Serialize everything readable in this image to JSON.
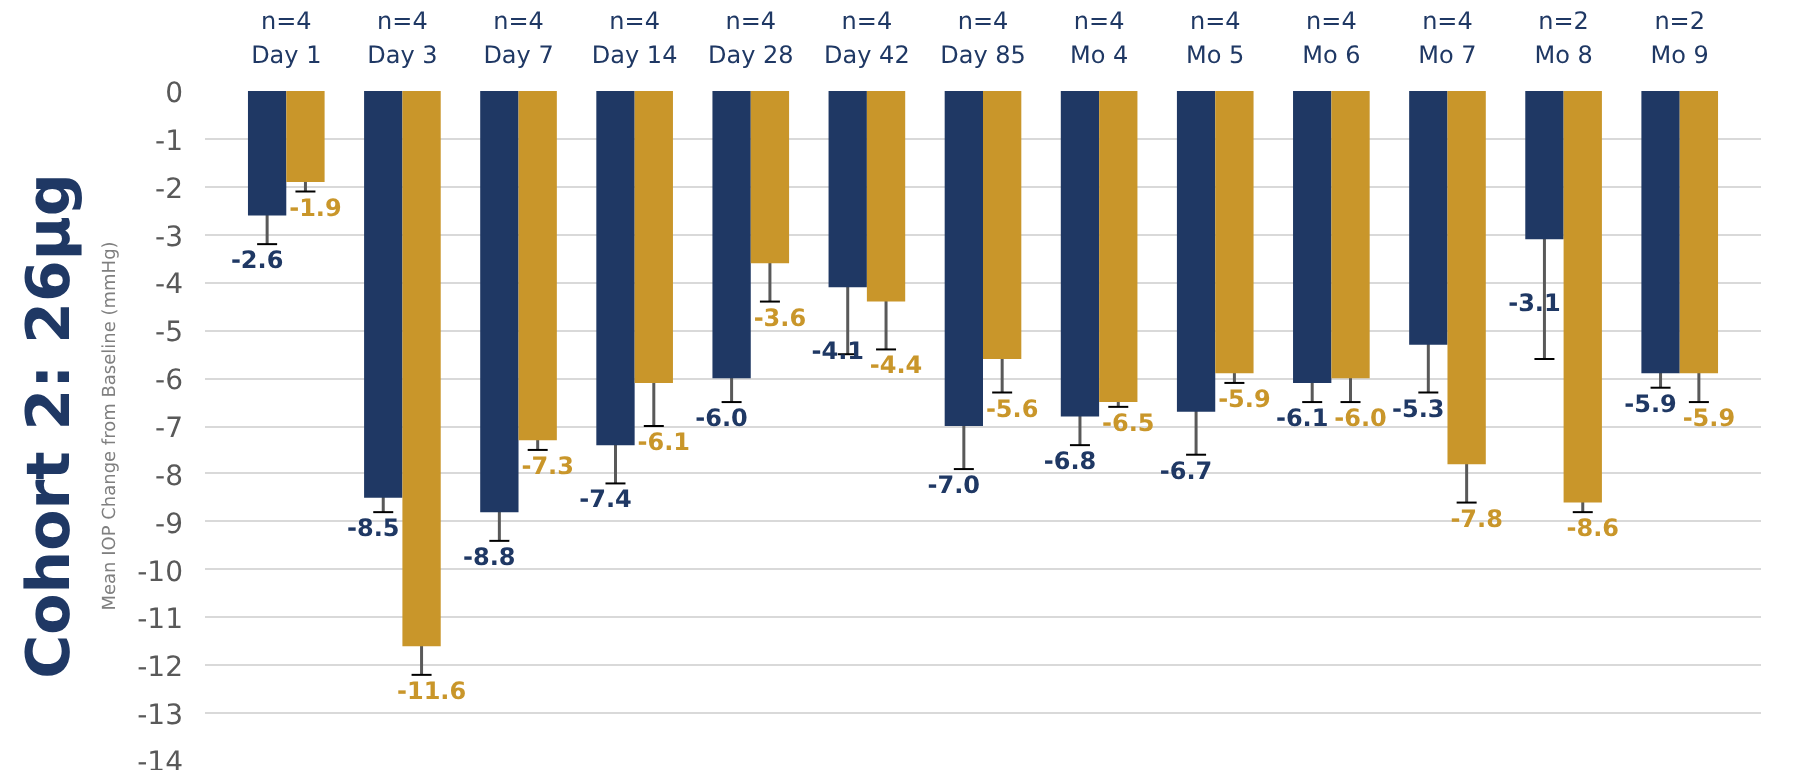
{
  "chart_data": {
    "type": "bar",
    "title": "Cohort 2: 26µg",
    "ylabel": "Mean IOP Change from Baseline (mmHg)",
    "categories": [
      "n=4\nDay 1",
      "n=4\nDay 3",
      "n=4\nDay 7",
      "n=4\nDay 14",
      "n=4\nDay 28",
      "n=4\nDay 42",
      "n=4\nDay 85",
      "n=4\nMo 4",
      "n=4\nMo 5",
      "n=4\nMo 6",
      "n=4\nMo 7",
      "n=2\nMo 8",
      "n=2\nMo 9"
    ],
    "series": [
      {
        "color": "#1f3864",
        "values": [
          -2.6,
          -8.5,
          -8.8,
          -7.4,
          -6.0,
          -4.1,
          -7.0,
          -6.8,
          -6.7,
          -6.1,
          -5.3,
          -3.1,
          -5.9
        ],
        "errors": [
          0.6,
          0.3,
          0.6,
          0.8,
          0.5,
          1.4,
          0.9,
          0.6,
          0.9,
          0.4,
          1.0,
          2.5,
          0.3
        ],
        "value_labels": [
          "-2.6",
          "-8.5",
          "-8.8",
          "-7.4",
          "-6.0",
          "-4.1",
          "-7.0",
          "-6.8",
          "-6.7",
          "-6.1",
          "-5.3",
          "-3.1",
          "-5.9"
        ]
      },
      {
        "color": "#c9962a",
        "values": [
          -1.9,
          -11.6,
          -7.3,
          -6.1,
          -3.6,
          -4.4,
          -5.6,
          -6.5,
          -5.9,
          -6.0,
          -7.8,
          -8.6,
          -5.9
        ],
        "errors": [
          0.2,
          0.6,
          0.2,
          0.9,
          0.8,
          1.0,
          0.7,
          0.1,
          0.2,
          0.5,
          0.8,
          0.2,
          0.6
        ],
        "value_labels": [
          "-1.9",
          "-11.6",
          "-7.3",
          "-6.1",
          "-3.6",
          "-4.4",
          "-5.6",
          "-6.5",
          "-5.9",
          "-6.0",
          "-7.8",
          "-8.6",
          "-5.9"
        ]
      }
    ],
    "ylim": [
      -14,
      0
    ],
    "yticks": [
      0,
      -1,
      -2,
      -3,
      -4,
      -5,
      -6,
      -7,
      -8,
      -9,
      -10,
      -11,
      -12,
      -13,
      -14
    ],
    "grid": "y"
  }
}
